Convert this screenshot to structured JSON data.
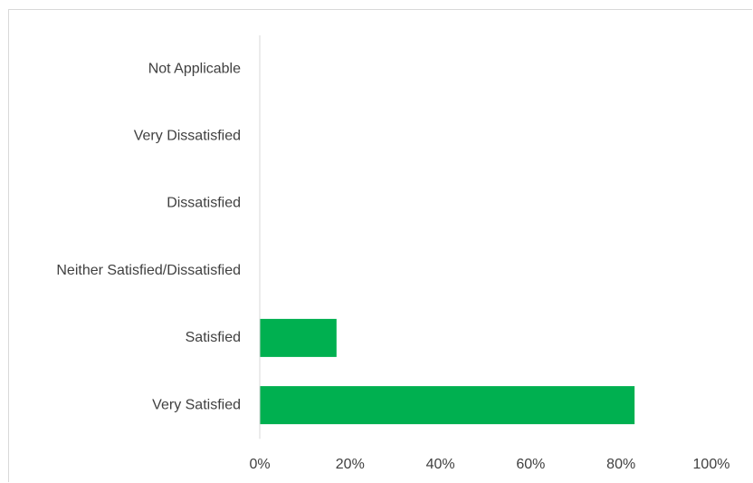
{
  "chart_data": {
    "type": "bar",
    "orientation": "horizontal",
    "categories": [
      "Not Applicable",
      "Very Dissatisfied",
      "Dissatisfied",
      "Neither Satisfied/Dissatisfied",
      "Satisfied",
      "Very Satisfied"
    ],
    "values": [
      0,
      0,
      0,
      0,
      17,
      83
    ],
    "xlim": [
      0,
      100
    ],
    "xticks": [
      "0%",
      "20%",
      "40%",
      "60%",
      "80%",
      "100%"
    ],
    "title": "",
    "xlabel": "",
    "ylabel": "",
    "grid": false,
    "bar_color": "#00b050",
    "axis_color": "#d9d9d9"
  }
}
